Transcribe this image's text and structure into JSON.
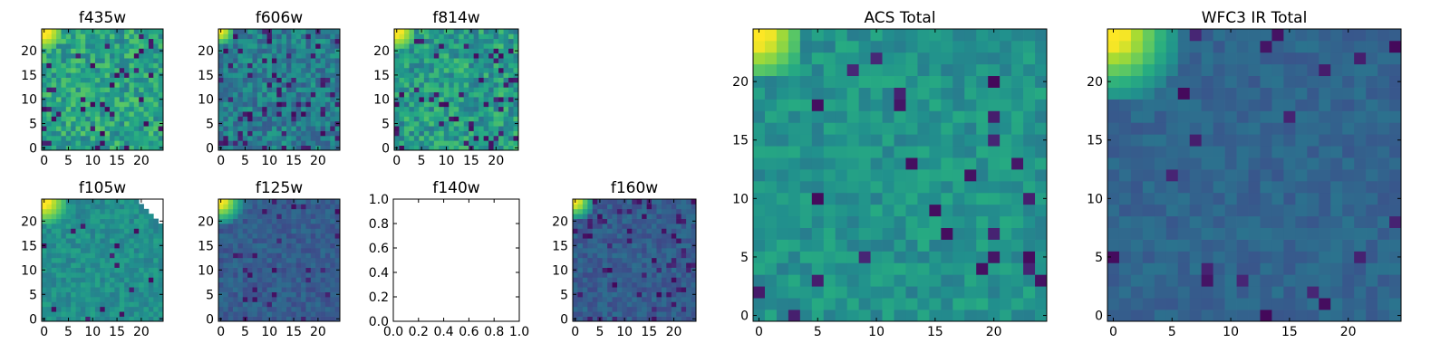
{
  "figure": {
    "colormap": "viridis",
    "background": "#ffffff"
  },
  "chart_data": [
    {
      "type": "heatmap",
      "title": "f435w",
      "xticks": [
        0,
        5,
        10,
        15,
        20
      ],
      "yticks": [
        0,
        5,
        10,
        15,
        20
      ],
      "xlim": [
        -0.5,
        24.5
      ],
      "ylim": [
        -0.5,
        24.5
      ],
      "grid": false,
      "pattern": {
        "base": 0.58,
        "spread": 0.17,
        "dark_rate": 0.06,
        "bright_corner": "top-left",
        "corner_strength": 0.45,
        "corner_extent": 4,
        "seed": 11,
        "blank_top_right": 0
      }
    },
    {
      "type": "heatmap",
      "title": "f606w",
      "xticks": [
        0,
        5,
        10,
        15,
        20
      ],
      "yticks": [
        0,
        5,
        10,
        15,
        20
      ],
      "xlim": [
        -0.5,
        24.5
      ],
      "ylim": [
        -0.5,
        24.5
      ],
      "grid": false,
      "pattern": {
        "base": 0.43,
        "spread": 0.15,
        "dark_rate": 0.09,
        "bright_corner": "top-left",
        "corner_strength": 0.55,
        "corner_extent": 3,
        "seed": 23,
        "blank_top_right": 0
      }
    },
    {
      "type": "heatmap",
      "title": "f814w",
      "xticks": [
        0,
        5,
        10,
        15,
        20
      ],
      "yticks": [
        0,
        5,
        10,
        15,
        20
      ],
      "xlim": [
        -0.5,
        24.5
      ],
      "ylim": [
        -0.5,
        24.5
      ],
      "grid": false,
      "pattern": {
        "base": 0.55,
        "spread": 0.17,
        "dark_rate": 0.07,
        "bright_corner": "top-left",
        "corner_strength": 0.45,
        "corner_extent": 4,
        "seed": 37,
        "blank_top_right": 0
      }
    },
    {
      "type": "heatmap",
      "title": "f105w",
      "xticks": [
        0,
        5,
        10,
        15,
        20
      ],
      "yticks": [
        0,
        5,
        10,
        15,
        20
      ],
      "xlim": [
        -0.5,
        24.5
      ],
      "ylim": [
        -0.5,
        24.5
      ],
      "grid": false,
      "pattern": {
        "base": 0.5,
        "spread": 0.09,
        "dark_rate": 0.02,
        "bright_corner": "top-left",
        "corner_strength": 0.5,
        "corner_extent": 5,
        "seed": 41,
        "blank_top_right": 5
      }
    },
    {
      "type": "heatmap",
      "title": "f125w",
      "xticks": [
        0,
        5,
        10,
        15,
        20
      ],
      "yticks": [
        0,
        5,
        10,
        15,
        20
      ],
      "xlim": [
        -0.5,
        24.5
      ],
      "ylim": [
        -0.5,
        24.5
      ],
      "grid": false,
      "pattern": {
        "base": 0.3,
        "spread": 0.08,
        "dark_rate": 0.05,
        "bright_corner": "top-left",
        "corner_strength": 0.7,
        "corner_extent": 5,
        "seed": 53,
        "blank_top_right": 0
      }
    },
    {
      "type": "empty",
      "title": "f140w",
      "xticks": [
        "0.0",
        "0.2",
        "0.4",
        "0.6",
        "0.8",
        "1.0"
      ],
      "yticks": [
        "0.0",
        "0.2",
        "0.4",
        "0.6",
        "0.8",
        "1.0"
      ],
      "xlim": [
        0,
        1
      ],
      "ylim": [
        0,
        1
      ],
      "grid": false
    },
    {
      "type": "heatmap",
      "title": "f160w",
      "xticks": [
        0,
        5,
        10,
        15,
        20
      ],
      "yticks": [
        0,
        5,
        10,
        15,
        20
      ],
      "xlim": [
        -0.5,
        24.5
      ],
      "ylim": [
        -0.5,
        24.5
      ],
      "grid": false,
      "pattern": {
        "base": 0.3,
        "spread": 0.08,
        "dark_rate": 0.07,
        "bright_corner": "top-left",
        "corner_strength": 0.7,
        "corner_extent": 4,
        "seed": 67,
        "blank_top_right": 0
      }
    },
    {
      "type": "heatmap",
      "title": "ACS Total",
      "xticks": [
        0,
        5,
        10,
        15,
        20
      ],
      "yticks": [
        0,
        5,
        10,
        15,
        20
      ],
      "xlim": [
        -0.5,
        24.5
      ],
      "ylim": [
        -0.5,
        24.5
      ],
      "grid": false,
      "pattern": {
        "base": 0.52,
        "spread": 0.1,
        "dark_rate": 0.04,
        "bright_corner": "top-left",
        "corner_strength": 0.48,
        "corner_extent": 4,
        "seed": 79,
        "blank_top_right": 0
      }
    },
    {
      "type": "heatmap",
      "title": "WFC3 IR Total",
      "xticks": [
        0,
        5,
        10,
        15,
        20
      ],
      "yticks": [
        0,
        5,
        10,
        15,
        20
      ],
      "xlim": [
        -0.5,
        24.5
      ],
      "ylim": [
        -0.5,
        24.5
      ],
      "grid": false,
      "pattern": {
        "base": 0.33,
        "spread": 0.06,
        "dark_rate": 0.04,
        "bright_corner": "top-left",
        "corner_strength": 0.67,
        "corner_extent": 6,
        "seed": 97,
        "blank_top_right": 0
      }
    }
  ]
}
